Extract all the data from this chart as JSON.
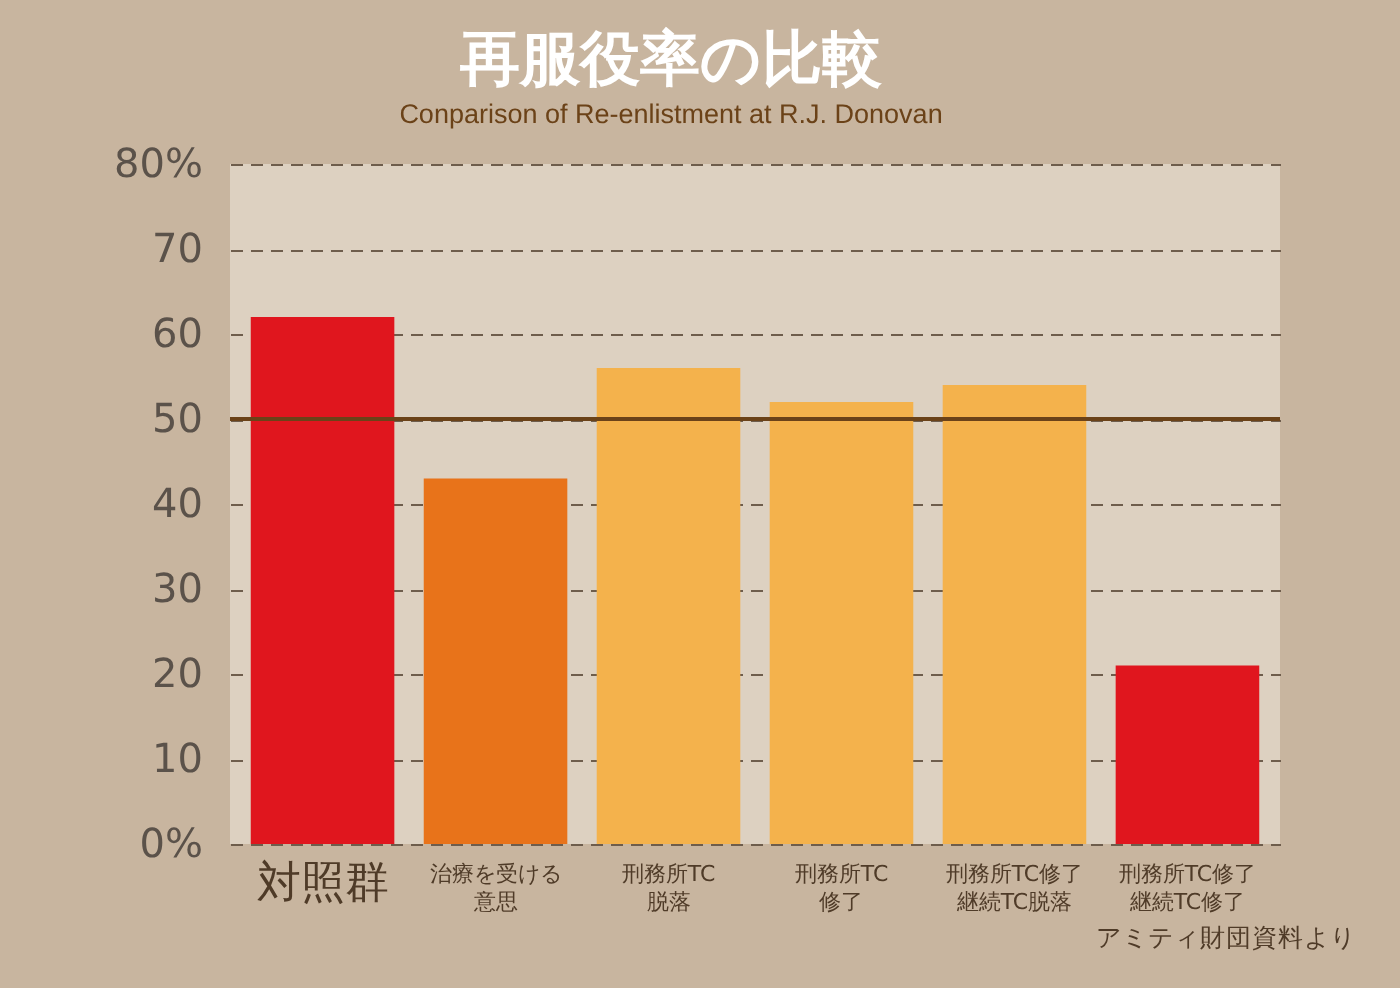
{
  "chart_data": {
    "type": "bar",
    "title": "再服役率の比較",
    "subtitle": "Conparison of Re-enlistment at R.J. Donovan",
    "categories": [
      "対照群",
      "治療を受ける意思",
      "刑務所TC脱落",
      "刑務所TC修了",
      "刑務所TC修了継続TC脱落",
      "刑務所TC修了継続TC修了"
    ],
    "values": [
      62,
      43,
      56,
      52,
      54,
      21
    ],
    "colors": [
      "#e0161e",
      "#e8731a",
      "#f4b24c",
      "#f4b24c",
      "#f4b24c",
      "#e0161e"
    ],
    "ylim": [
      0,
      80
    ],
    "yticks": [
      {
        "value": 0,
        "label": "0%"
      },
      10,
      20,
      30,
      40,
      50,
      60,
      70,
      {
        "value": 80,
        "label": "80%"
      }
    ],
    "grid": "y",
    "ref_lines": [
      {
        "axis": "y",
        "value": 50,
        "color": "#6b4218",
        "line_style": "solid"
      }
    ],
    "annotations": [
      "アミティ財団資料より"
    ]
  }
}
